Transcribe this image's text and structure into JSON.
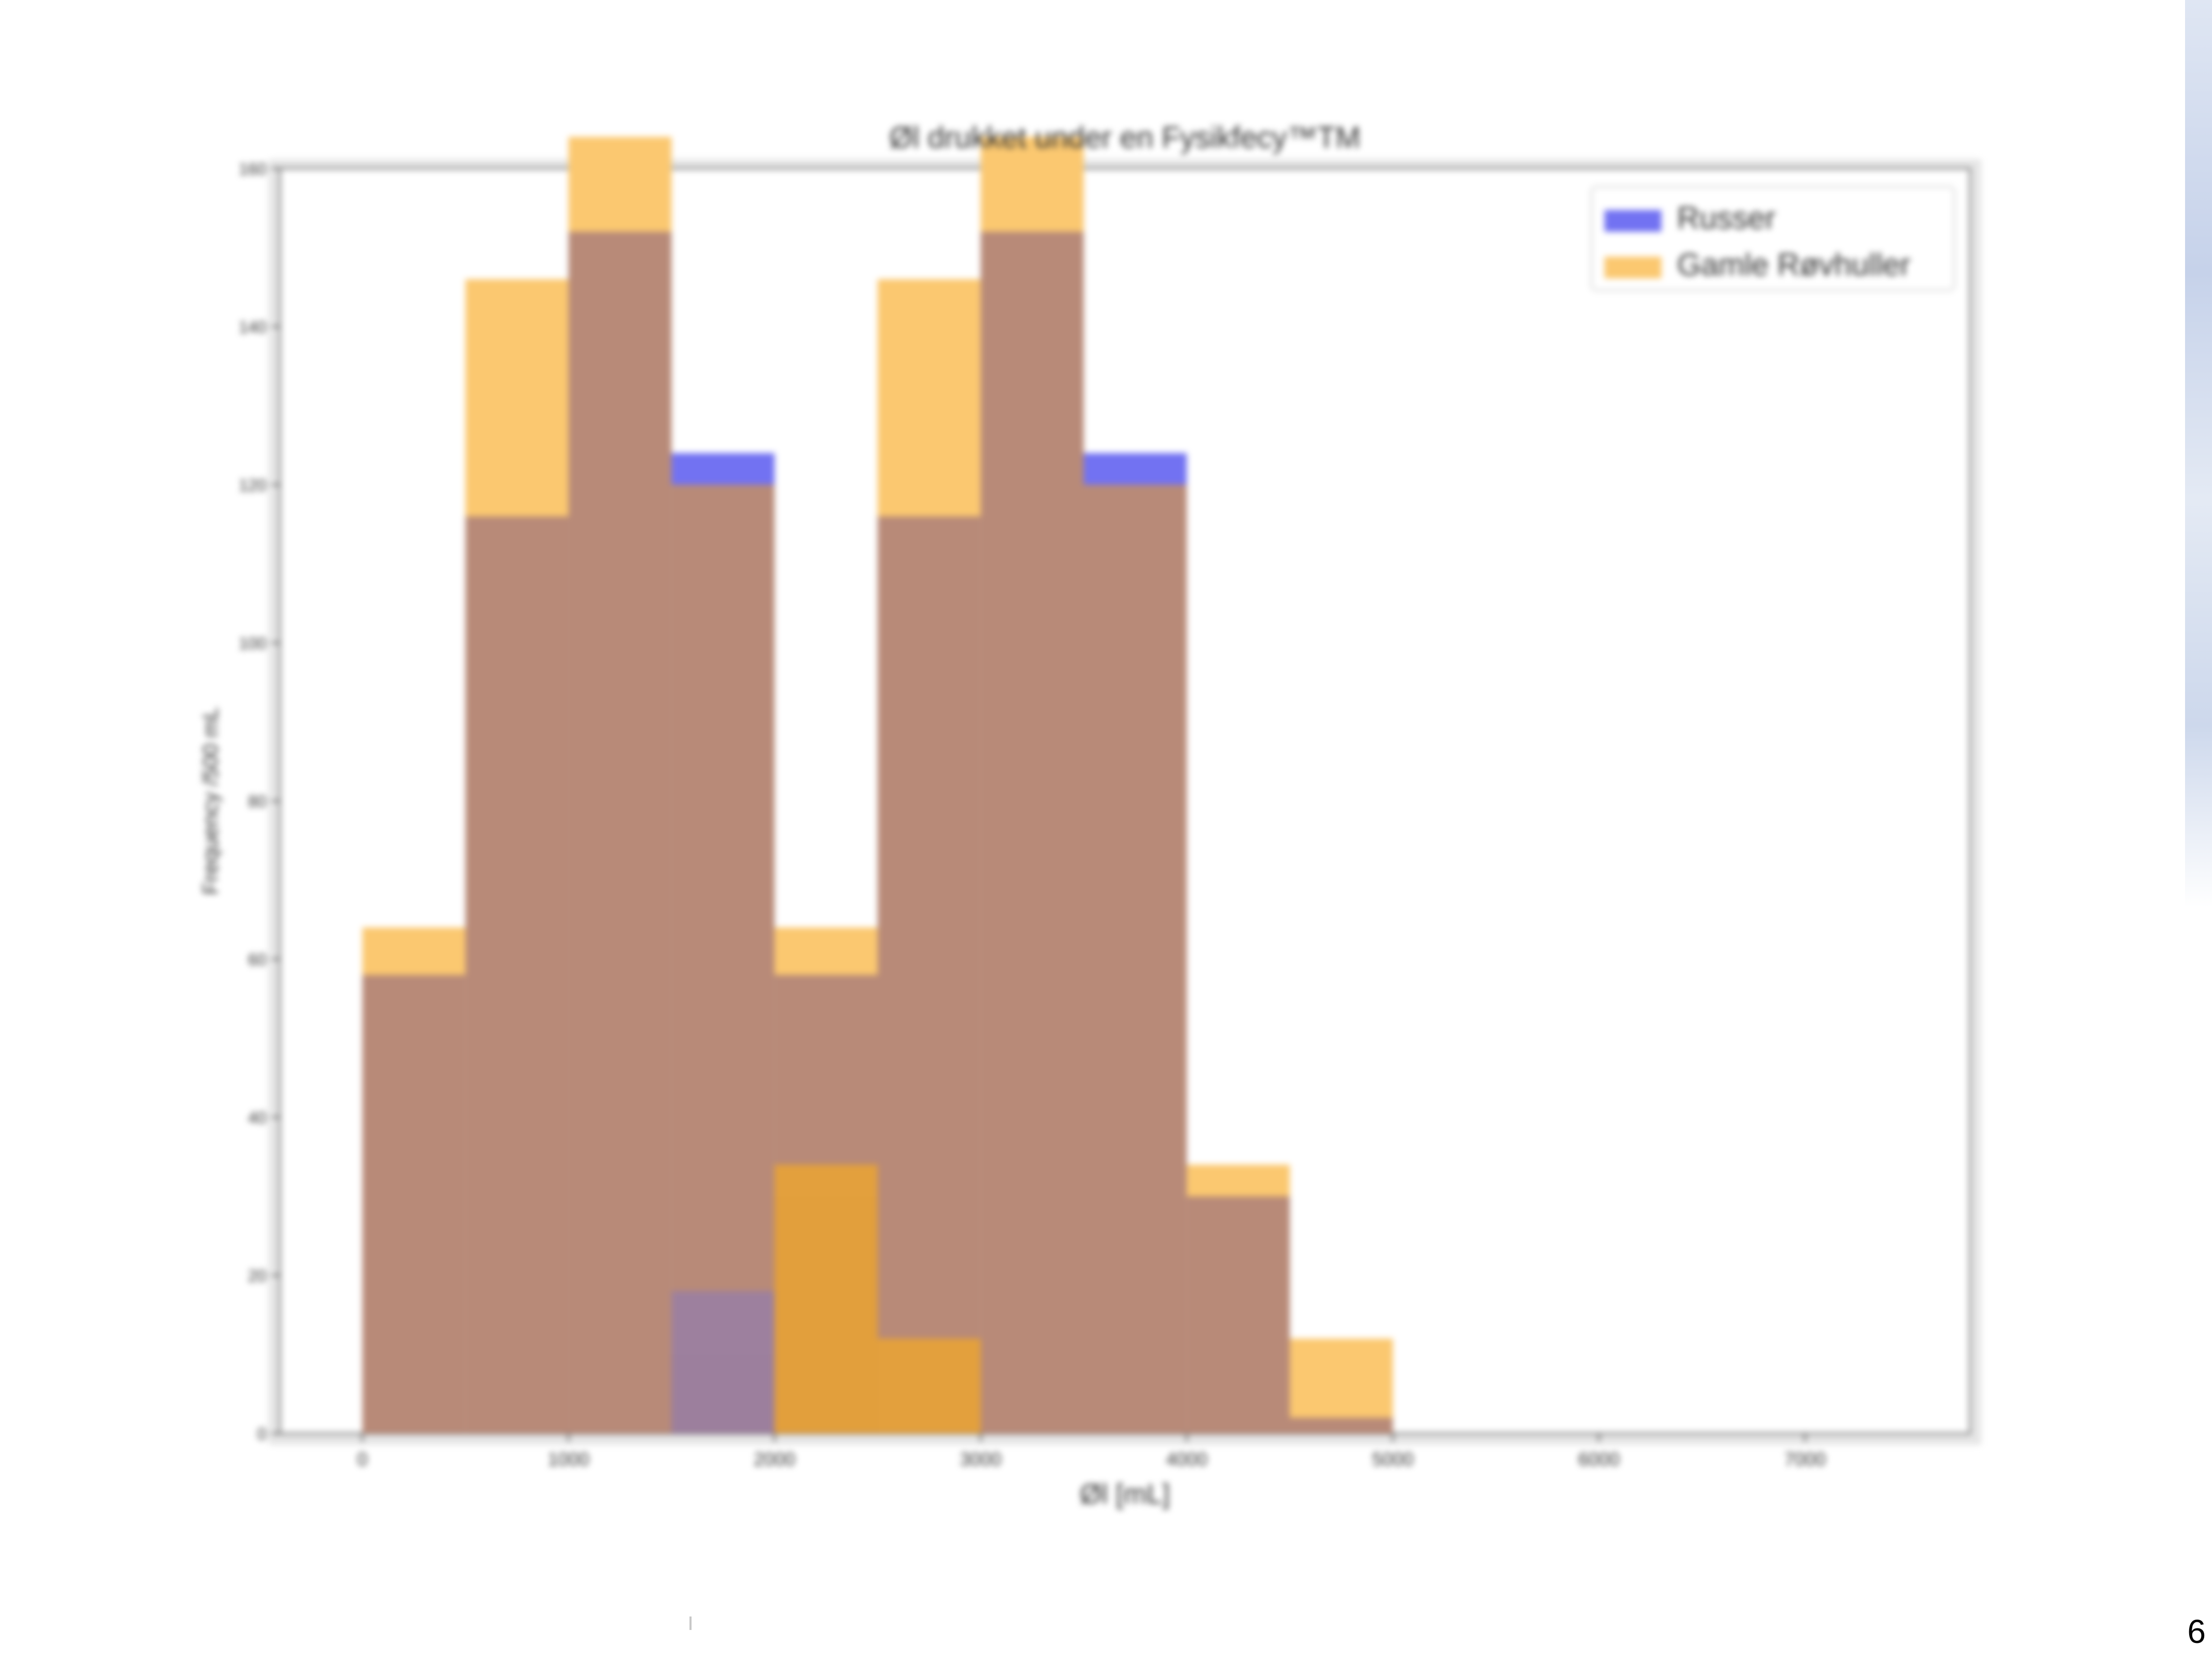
{
  "slide": {
    "page_number": "6",
    "decoration_color": "#c9d5ea"
  },
  "chart_data": {
    "type": "bar",
    "title": "Øl drukket under en Fysikfecy™TM",
    "xlabel": "Øl [mL]",
    "ylabel": "Frequency /500 mL",
    "xlim": [
      -400,
      7800
    ],
    "ylim": [
      0,
      160
    ],
    "x_ticks": [
      0,
      1000,
      2000,
      3000,
      4000,
      5000,
      6000,
      7000
    ],
    "x_tick_labels": [
      "0",
      "1000",
      "2000",
      "3000",
      "4000",
      "5000",
      "6000",
      "7000"
    ],
    "y_ticks": [
      0,
      20,
      40,
      60,
      80,
      100,
      120,
      140,
      160
    ],
    "y_tick_labels": [
      "0",
      "20",
      "40",
      "60",
      "80",
      "100",
      "120",
      "140",
      "160"
    ],
    "bin_edges": [
      0,
      500,
      1000,
      1500,
      2000,
      2500,
      3000,
      3500,
      4000,
      4500,
      5000
    ],
    "legend_position": "top-right",
    "overlay_color": "#b88a78",
    "series": [
      {
        "name": "Russer",
        "color": "#7272f2",
        "values": [
          58,
          116,
          152,
          124,
          58,
          116,
          152,
          124,
          30,
          2
        ]
      },
      {
        "name": "Gamle Røvhuller",
        "color": "#fbc870",
        "values": [
          64,
          146,
          164,
          120,
          64,
          146,
          164,
          120,
          34,
          12
        ]
      },
      {
        "name": "",
        "color": "#a9705c",
        "values": [
          0,
          0,
          0,
          10,
          30,
          0,
          0,
          0,
          0,
          0
        ]
      },
      {
        "name": "",
        "color": "#9b7fa0",
        "values": [
          0,
          0,
          0,
          18,
          0,
          0,
          0,
          0,
          0,
          0
        ]
      },
      {
        "name": "",
        "color": "#e5a13a",
        "values": [
          0,
          0,
          0,
          0,
          34,
          12,
          0,
          0,
          0,
          0
        ]
      }
    ]
  }
}
